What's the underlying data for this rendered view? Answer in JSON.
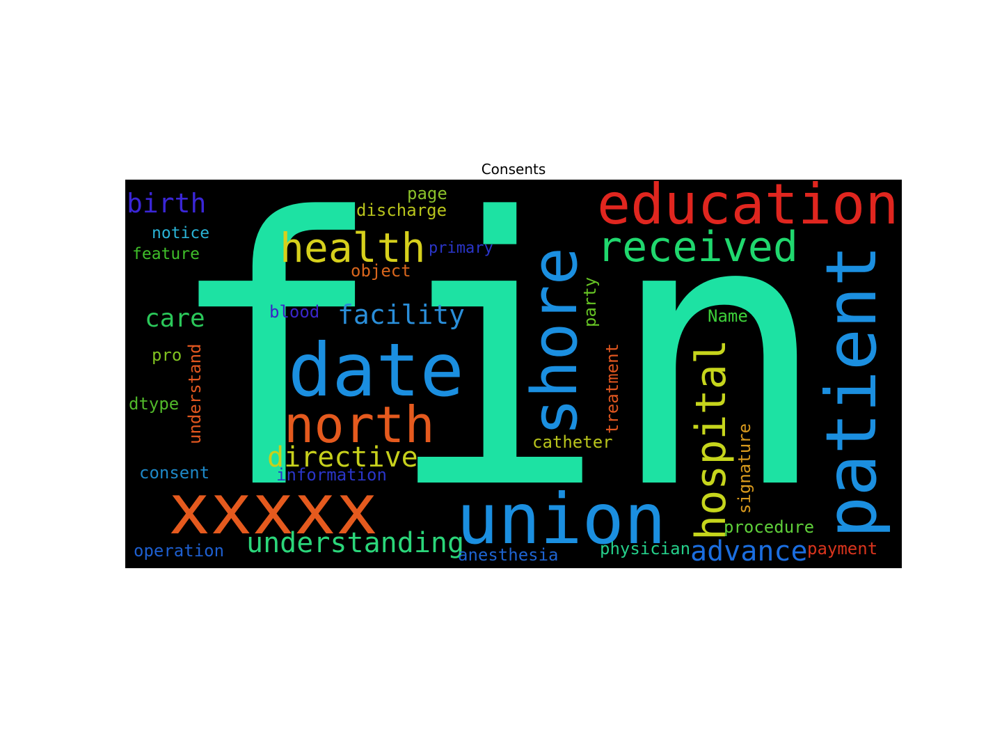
{
  "title": "Consents",
  "words": [
    {
      "text": "fin",
      "color": "#1de2a3"
    },
    {
      "text": "education",
      "color": "#e0261f"
    },
    {
      "text": "received",
      "color": "#20d86e"
    },
    {
      "text": "health",
      "color": "#d6d01c"
    },
    {
      "text": "birth",
      "color": "#3a26d6"
    },
    {
      "text": "page",
      "color": "#8bc12a"
    },
    {
      "text": "discharge",
      "color": "#b8c41c"
    },
    {
      "text": "notice",
      "color": "#2ab3d6"
    },
    {
      "text": "feature",
      "color": "#3fbf2a"
    },
    {
      "text": "primary",
      "color": "#2a35c9"
    },
    {
      "text": "object",
      "color": "#d9661d"
    },
    {
      "text": "shore",
      "color": "#1b8fe0"
    },
    {
      "text": "patient",
      "color": "#1b8fe0"
    },
    {
      "text": "care",
      "color": "#2bc85a"
    },
    {
      "text": "blood",
      "color": "#3a25c8"
    },
    {
      "text": "facility",
      "color": "#2a8ed9"
    },
    {
      "text": "party",
      "color": "#66c424"
    },
    {
      "text": "Name",
      "color": "#3dcf3a"
    },
    {
      "text": "date",
      "color": "#1b8fe0"
    },
    {
      "text": "pro",
      "color": "#80c220"
    },
    {
      "text": "understand",
      "color": "#e0561f"
    },
    {
      "text": "dtype",
      "color": "#51b82a"
    },
    {
      "text": "north",
      "color": "#e55a1e"
    },
    {
      "text": "treatment",
      "color": "#e0561f"
    },
    {
      "text": "hospital",
      "color": "#c6d51c"
    },
    {
      "text": "signature",
      "color": "#d99a1d"
    },
    {
      "text": "catheter",
      "color": "#b8c41c"
    },
    {
      "text": "directive",
      "color": "#c7d01c"
    },
    {
      "text": "consent",
      "color": "#1e88c7"
    },
    {
      "text": "information",
      "color": "#2a35c9"
    },
    {
      "text": "xxxxx",
      "color": "#e55a1e"
    },
    {
      "text": "union",
      "color": "#1b8fe0"
    },
    {
      "text": "understanding",
      "color": "#2bd67a"
    },
    {
      "text": "procedure",
      "color": "#5fcf3a"
    },
    {
      "text": "operation",
      "color": "#1e5fd0"
    },
    {
      "text": "anesthesia",
      "color": "#1e63d0"
    },
    {
      "text": "physician",
      "color": "#25cf8a"
    },
    {
      "text": "advance",
      "color": "#1b6ee0"
    },
    {
      "text": "payment",
      "color": "#d9341d"
    }
  ]
}
